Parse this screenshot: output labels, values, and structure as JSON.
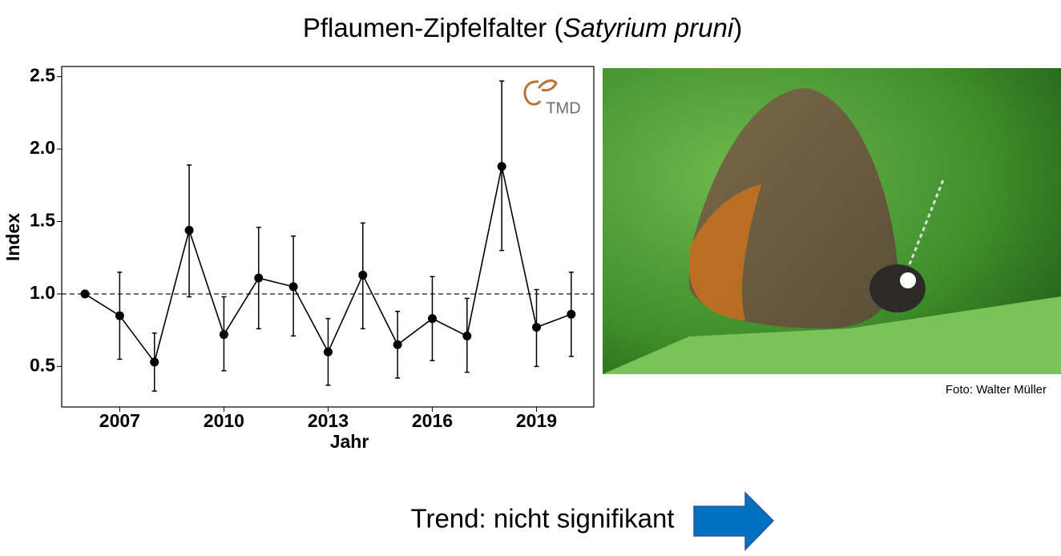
{
  "chart_data": {
    "type": "line",
    "title": [
      "Pflaumen-Zipfelfalter (",
      "Satyrium pruni",
      ")"
    ],
    "x_label": "Jahr",
    "y_label": "Index",
    "x": [
      2006,
      2007,
      2008,
      2009,
      2010,
      2011,
      2012,
      2013,
      2014,
      2015,
      2016,
      2017,
      2018,
      2019,
      2020
    ],
    "series": [
      {
        "color": "#000000",
        "values": [
          1.0,
          0.85,
          0.53,
          1.44,
          0.72,
          1.11,
          1.05,
          0.6,
          1.13,
          0.65,
          0.83,
          0.71,
          1.88,
          0.77,
          0.86
        ],
        "error_low": [
          null,
          0.55,
          0.33,
          0.98,
          0.47,
          0.76,
          0.71,
          0.37,
          0.76,
          0.42,
          0.54,
          0.46,
          1.3,
          0.5,
          0.57
        ],
        "error_high": [
          null,
          1.15,
          0.73,
          1.89,
          0.98,
          1.46,
          1.4,
          0.83,
          1.49,
          0.88,
          1.12,
          0.97,
          2.47,
          1.03,
          1.15
        ]
      }
    ],
    "xlim": [
      2005.33,
      2020.65
    ],
    "ylim": [
      0.22,
      2.57
    ],
    "xticks": [
      2007,
      2010,
      2013,
      2016,
      2019
    ],
    "yticks": [
      0.5,
      {
        "value": 1,
        "label": "1.0"
      },
      1.5,
      {
        "value": 2,
        "label": "2.0"
      },
      2.5
    ],
    "reference_line": 1,
    "grid": false
  },
  "logo_text": "TMD",
  "photo_credit": "Foto: Walter Müller",
  "trend_text": "Trend: nicht signifikant"
}
